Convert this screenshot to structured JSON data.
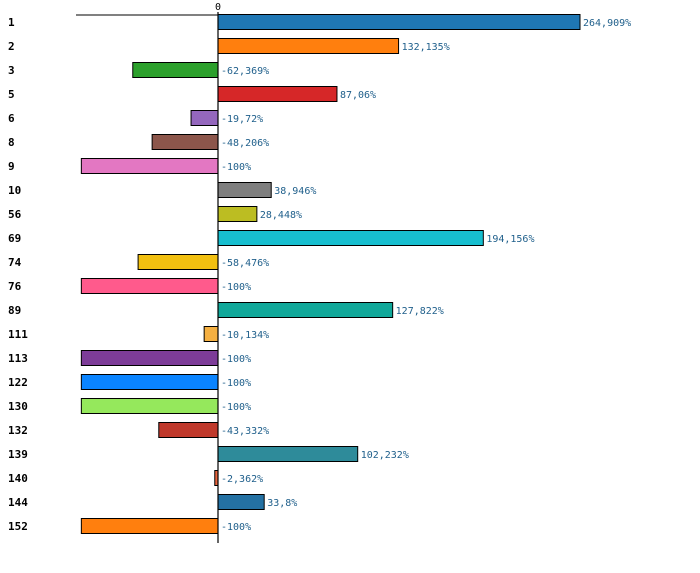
{
  "chart_data": {
    "type": "bar",
    "orientation": "horizontal",
    "title": "",
    "xlabel": "",
    "ylabel": "",
    "x_ticks": [
      "0"
    ],
    "xlim": [
      -100,
      264.909
    ],
    "grid": false,
    "legend": "none",
    "categories": [
      "1",
      "2",
      "3",
      "5",
      "6",
      "8",
      "9",
      "10",
      "56",
      "69",
      "74",
      "76",
      "89",
      "111",
      "113",
      "122",
      "130",
      "132",
      "139",
      "140",
      "144",
      "152"
    ],
    "values": [
      264.909,
      132.135,
      -62.369,
      87.06,
      -19.72,
      -48.206,
      -100,
      38.946,
      28.448,
      194.156,
      -58.476,
      -100,
      127.822,
      -10.134,
      -100,
      -100,
      -100,
      -43.332,
      102.232,
      -2.362,
      33.8,
      -100
    ],
    "value_labels": [
      "264,909%",
      "132,135%",
      "-62,369%",
      "87,06%",
      "-19,72%",
      "-48,206%",
      "-100%",
      "38,946%",
      "28,448%",
      "194,156%",
      "-58,476%",
      "-100%",
      "127,822%",
      "-10,134%",
      "-100%",
      "-100%",
      "-100%",
      "-43,332%",
      "102,232%",
      "-2,362%",
      "33,8%",
      "-100%"
    ],
    "colors": [
      "#1f77b4",
      "#ff7f0e",
      "#2ca02c",
      "#d62728",
      "#9467bd",
      "#8c564b",
      "#e377c2",
      "#7f7f7f",
      "#bcbd22",
      "#17becf",
      "#f2c010",
      "#ff5a8c",
      "#11a89a",
      "#f5b041",
      "#7d3c98",
      "#0a84ff",
      "#95e85c",
      "#c0392b",
      "#2e8b9a",
      "#e8643c",
      "#2471a3",
      "#ff7f0e"
    ],
    "value_label_color": "#1f5f8b"
  }
}
